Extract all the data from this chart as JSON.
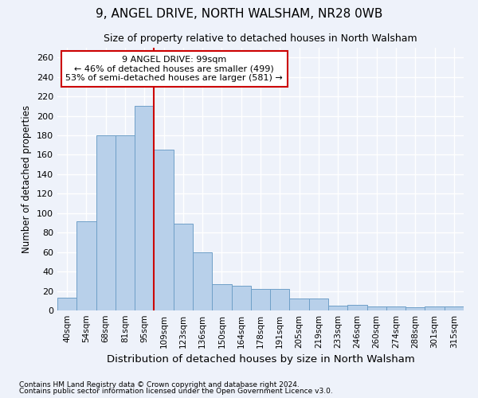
{
  "title1": "9, ANGEL DRIVE, NORTH WALSHAM, NR28 0WB",
  "title2": "Size of property relative to detached houses in North Walsham",
  "xlabel": "Distribution of detached houses by size in North Walsham",
  "ylabel": "Number of detached properties",
  "categories": [
    "40sqm",
    "54sqm",
    "68sqm",
    "81sqm",
    "95sqm",
    "109sqm",
    "123sqm",
    "136sqm",
    "150sqm",
    "164sqm",
    "178sqm",
    "191sqm",
    "205sqm",
    "219sqm",
    "233sqm",
    "246sqm",
    "260sqm",
    "274sqm",
    "288sqm",
    "301sqm",
    "315sqm"
  ],
  "values": [
    13,
    92,
    180,
    180,
    210,
    165,
    89,
    60,
    27,
    25,
    22,
    22,
    12,
    12,
    5,
    6,
    4,
    4,
    3,
    4,
    4
  ],
  "bar_color": "#b8d0ea",
  "bar_edge_color": "#6fa0c8",
  "vline_x": 4.5,
  "vline_color": "#cc0000",
  "ylim": [
    0,
    270
  ],
  "yticks": [
    0,
    20,
    40,
    60,
    80,
    100,
    120,
    140,
    160,
    180,
    200,
    220,
    240,
    260
  ],
  "annotation_line1": "9 ANGEL DRIVE: 99sqm",
  "annotation_line2": "← 46% of detached houses are smaller (499)",
  "annotation_line3": "53% of semi-detached houses are larger (581) →",
  "annotation_box_color": "#ffffff",
  "annotation_box_edge": "#cc0000",
  "footer1": "Contains HM Land Registry data © Crown copyright and database right 2024.",
  "footer2": "Contains public sector information licensed under the Open Government Licence v3.0.",
  "bg_color": "#eef2fa",
  "grid_color": "#ffffff"
}
